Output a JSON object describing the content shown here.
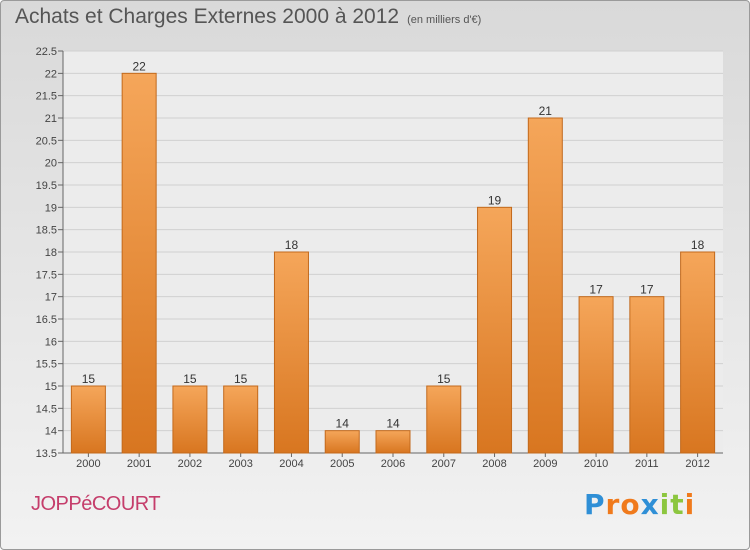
{
  "title": "Achats et Charges Externes 2000 à 2012",
  "subtitle": "(en milliers d'€)",
  "commune": "JOPPéCOURT",
  "logo": {
    "letters": [
      "P",
      "r",
      "o",
      "x",
      "i",
      "t",
      "i"
    ],
    "colors": [
      "#2f8fd6",
      "#f07a1c",
      "#f07a1c",
      "#2f8fd6",
      "#8cc63f",
      "#8cc63f",
      "#f07a1c"
    ]
  },
  "colors": {
    "bar_light": "#f5a65a",
    "bar_dark": "#d87620",
    "bar_edge": "#c2691c",
    "title": "#555555",
    "commune": "#c53d6b"
  },
  "chart_data": {
    "type": "bar",
    "title": "Achats et Charges Externes 2000 à 2012",
    "subtitle": "(en milliers d'€)",
    "xlabel": "",
    "ylabel": "",
    "categories": [
      "2000",
      "2001",
      "2002",
      "2003",
      "2004",
      "2005",
      "2006",
      "2007",
      "2008",
      "2009",
      "2010",
      "2011",
      "2012"
    ],
    "values": [
      15,
      22,
      15,
      15,
      18,
      14,
      14,
      15,
      19,
      21,
      17,
      17,
      18
    ],
    "ylim": [
      13.5,
      22.5
    ],
    "yticks": [
      "13.5",
      "14",
      "14.5",
      "15",
      "15.5",
      "16",
      "16.5",
      "17",
      "17.5",
      "18",
      "18.5",
      "19",
      "19.5",
      "20",
      "20.5",
      "21",
      "21.5",
      "22",
      "22.5"
    ],
    "grid": true,
    "legend": "none"
  }
}
